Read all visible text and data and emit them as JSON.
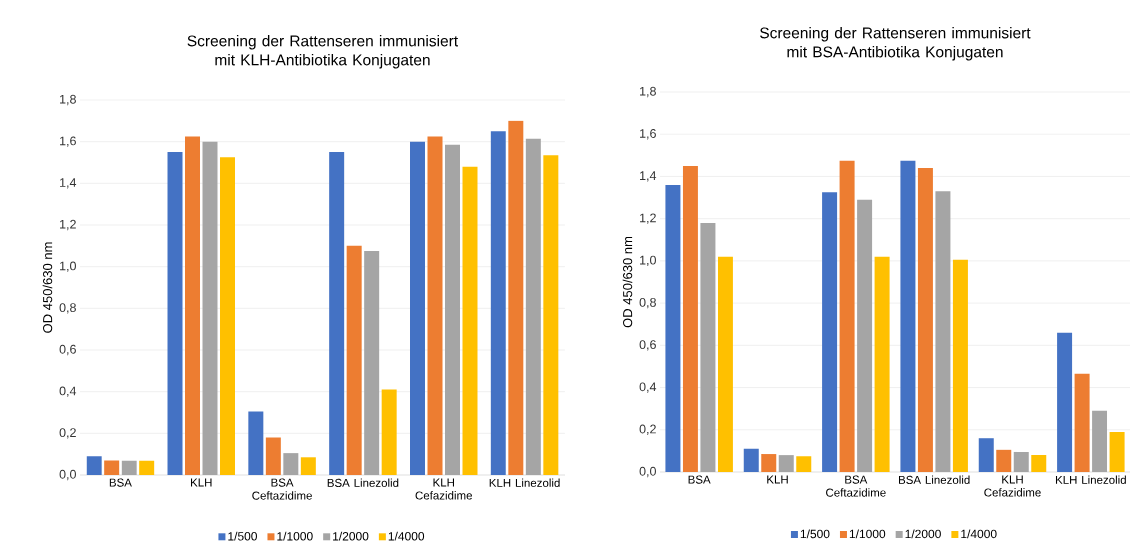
{
  "chart_data": [
    {
      "type": "bar",
      "title": "Screening der Rattenseren immunisiert mit KLH-Antibiotika Konjugaten",
      "ylabel": "OD 450/630 nm",
      "categories": [
        "BSA",
        "KLH",
        "BSA Ceftazidime",
        "BSA Linezolid",
        "KLH Cefazidime",
        "KLH Linezolid"
      ],
      "series": [
        {
          "name": "1/500",
          "color": "#4472c4",
          "values": [
            0.09,
            1.55,
            0.305,
            1.55,
            1.6,
            1.65
          ]
        },
        {
          "name": "1/1000",
          "color": "#ed7d31",
          "values": [
            0.07,
            1.625,
            0.18,
            1.1,
            1.625,
            1.7
          ]
        },
        {
          "name": "1/2000",
          "color": "#a5a5a5",
          "values": [
            0.068,
            1.6,
            0.105,
            1.075,
            1.585,
            1.615
          ]
        },
        {
          "name": "1/4000",
          "color": "#ffc000",
          "values": [
            0.068,
            1.525,
            0.085,
            0.41,
            1.48,
            1.535
          ]
        }
      ],
      "ylim": [
        0,
        1.8
      ],
      "yticks": [
        {
          "value": 0,
          "label": "0,0"
        },
        {
          "value": 0.2,
          "label": "0,2"
        },
        {
          "value": 0.4,
          "label": "0,4"
        },
        {
          "value": 0.6,
          "label": "0,6"
        },
        {
          "value": 0.8,
          "label": "0,8"
        },
        {
          "value": 1.0,
          "label": "1,0"
        },
        {
          "value": 1.2,
          "label": "1,2"
        },
        {
          "value": 1.4,
          "label": "1,4"
        },
        {
          "value": 1.6,
          "label": "1,6"
        },
        {
          "value": 1.8,
          "label": "1,8"
        }
      ],
      "grid": "y",
      "legend": "bottom"
    },
    {
      "type": "bar",
      "title": "Screening der Rattenseren immunisiert mit BSA-Antibiotika Konjugaten",
      "ylabel": "OD 450/630 nm",
      "categories": [
        "BSA",
        "KLH",
        "BSA Ceftazidime",
        "BSA Linezolid",
        "KLH Cefazidime",
        "KLH Linezolid"
      ],
      "series": [
        {
          "name": "1/500",
          "color": "#4472c4",
          "values": [
            1.36,
            0.11,
            1.325,
            1.475,
            0.16,
            0.66
          ]
        },
        {
          "name": "1/1000",
          "color": "#ed7d31",
          "values": [
            1.45,
            0.085,
            1.475,
            1.44,
            0.105,
            0.465
          ]
        },
        {
          "name": "1/2000",
          "color": "#a5a5a5",
          "values": [
            1.18,
            0.08,
            1.29,
            1.33,
            0.095,
            0.29
          ]
        },
        {
          "name": "1/4000",
          "color": "#ffc000",
          "values": [
            1.02,
            0.075,
            1.02,
            1.005,
            0.08,
            0.19
          ]
        }
      ],
      "ylim": [
        0,
        1.8
      ],
      "yticks": [
        {
          "value": 0,
          "label": "0,0"
        },
        {
          "value": 0.2,
          "label": "0,2"
        },
        {
          "value": 0.4,
          "label": "0,4"
        },
        {
          "value": 0.6,
          "label": "0,6"
        },
        {
          "value": 0.8,
          "label": "0,8"
        },
        {
          "value": 1.0,
          "label": "1,0"
        },
        {
          "value": 1.2,
          "label": "1,2"
        },
        {
          "value": 1.4,
          "label": "1,4"
        },
        {
          "value": 1.6,
          "label": "1,6"
        },
        {
          "value": 1.8,
          "label": "1,8"
        }
      ],
      "grid": "y",
      "legend": "bottom"
    }
  ]
}
